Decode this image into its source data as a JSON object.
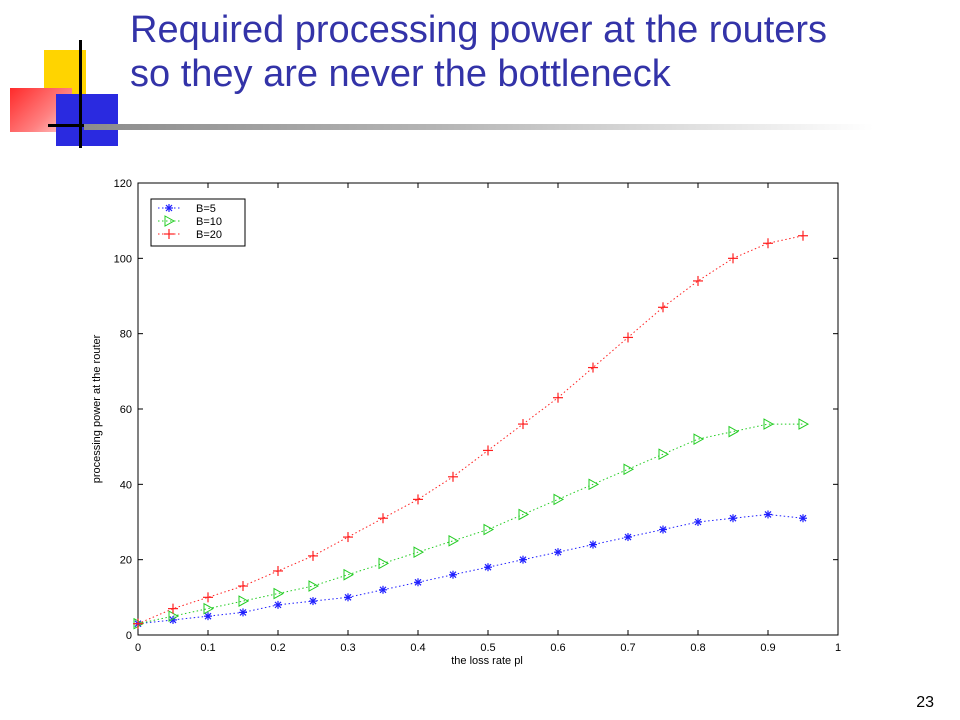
{
  "slide": {
    "title_line1": "Required processing power at the routers",
    "title_line2": "so they are never the bottleneck",
    "page_number": "23"
  },
  "chart_data": {
    "type": "line",
    "title": "",
    "xlabel": "the loss rate pl",
    "ylabel": "processing power at the router",
    "xlim": [
      0,
      1
    ],
    "ylim": [
      0,
      120
    ],
    "xticks": [
      "0",
      "0.1",
      "0.2",
      "0.3",
      "0.4",
      "0.5",
      "0.6",
      "0.7",
      "0.8",
      "0.9",
      "1"
    ],
    "yticks": [
      "0",
      "20",
      "40",
      "60",
      "80",
      "100",
      "120"
    ],
    "grid": false,
    "legend_position": "top-left",
    "x": [
      0,
      0.05,
      0.1,
      0.15,
      0.2,
      0.25,
      0.3,
      0.35,
      0.4,
      0.45,
      0.5,
      0.55,
      0.6,
      0.65,
      0.7,
      0.75,
      0.8,
      0.85,
      0.9,
      0.95
    ],
    "series": [
      {
        "name": "B=5",
        "color": "#1f1fff",
        "marker": "asterisk",
        "values": [
          3,
          4,
          5,
          6,
          8,
          9,
          10,
          12,
          14,
          16,
          18,
          20,
          22,
          24,
          26,
          28,
          30,
          31,
          32,
          31
        ]
      },
      {
        "name": "B=10",
        "color": "#22cc22",
        "marker": "triangle-right",
        "values": [
          3,
          5,
          7,
          9,
          11,
          13,
          16,
          19,
          22,
          25,
          28,
          32,
          36,
          40,
          44,
          48,
          52,
          54,
          56,
          56
        ]
      },
      {
        "name": "B=20",
        "color": "#ff2020",
        "marker": "plus",
        "values": [
          3,
          7,
          10,
          13,
          17,
          21,
          26,
          31,
          36,
          42,
          49,
          56,
          63,
          71,
          79,
          87,
          94,
          100,
          104,
          106
        ]
      }
    ]
  }
}
